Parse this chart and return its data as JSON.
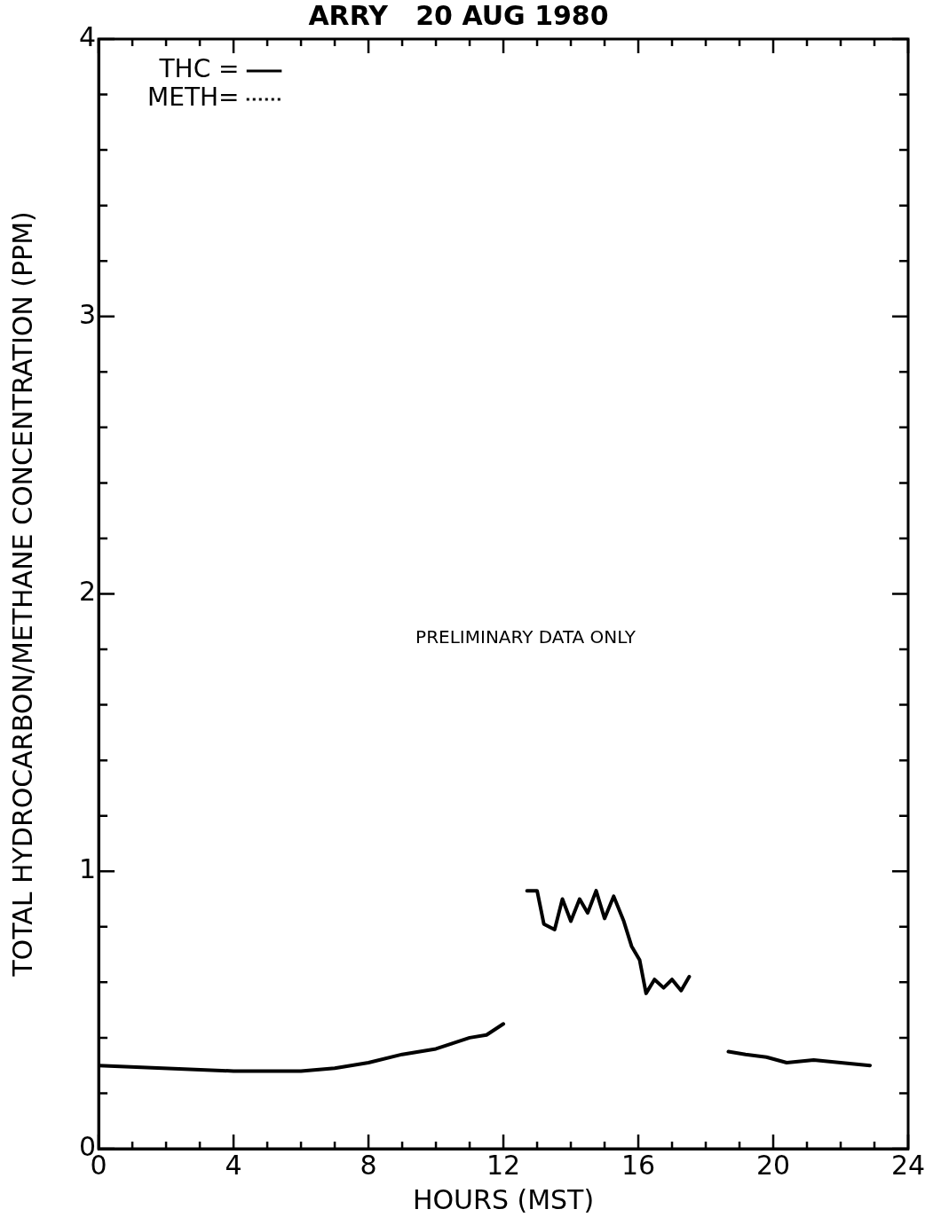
{
  "chart_data": {
    "type": "line",
    "title": "ARRY   20 AUG 1980",
    "xlabel": "HOURS (MST)",
    "ylabel": "TOTAL HYDROCARBON/METHANE CONCENTRATION (PPM)",
    "xlim": [
      0,
      24
    ],
    "xticks": [
      0,
      {
        "value": 1,
        "label": null
      },
      {
        "value": 2,
        "label": null
      },
      {
        "value": 3,
        "label": null
      },
      4,
      {
        "value": 5,
        "label": null
      },
      {
        "value": 6,
        "label": null
      },
      {
        "value": 7,
        "label": null
      },
      8,
      {
        "value": 9,
        "label": null
      },
      {
        "value": 10,
        "label": null
      },
      {
        "value": 11,
        "label": null
      },
      12,
      {
        "value": 13,
        "label": null
      },
      {
        "value": 14,
        "label": null
      },
      {
        "value": 15,
        "label": null
      },
      16,
      {
        "value": 17,
        "label": null
      },
      {
        "value": 18,
        "label": null
      },
      {
        "value": 19,
        "label": null
      },
      20,
      {
        "value": 21,
        "label": null
      },
      {
        "value": 22,
        "label": null
      },
      {
        "value": 23,
        "label": null
      },
      24
    ],
    "ylim": [
      0,
      4
    ],
    "yticks": [
      0,
      {
        "value": 0.2,
        "label": null
      },
      {
        "value": 0.4,
        "label": null
      },
      {
        "value": 0.6,
        "label": null
      },
      {
        "value": 0.8,
        "label": null
      },
      1,
      {
        "value": 1.2,
        "label": null
      },
      {
        "value": 1.4,
        "label": null
      },
      {
        "value": 1.6,
        "label": null
      },
      {
        "value": 1.8,
        "label": null
      },
      2,
      {
        "value": 2.2,
        "label": null
      },
      {
        "value": 2.4,
        "label": null
      },
      {
        "value": 2.6,
        "label": null
      },
      {
        "value": 2.8,
        "label": null
      },
      3,
      {
        "value": 3.2,
        "label": null
      },
      {
        "value": 3.4,
        "label": null
      },
      {
        "value": 3.6,
        "label": null
      },
      {
        "value": 3.8,
        "label": null
      },
      4
    ],
    "grid": false,
    "legend": "top left",
    "marker": "none",
    "annotations": [
      "PRELIMINARY DATA ONLY"
    ],
    "series": [
      {
        "name": "THC =",
        "color": "#000000",
        "line_style": "solid",
        "x": [
          0,
          4,
          6,
          7,
          8,
          9,
          10,
          10.5,
          11,
          11.5,
          12,
          12.35,
          12.7,
          13,
          13.2,
          13.52,
          13.75,
          14,
          14.26,
          14.5,
          14.75,
          15,
          15.27,
          15.57,
          15.8,
          16.04,
          16.23,
          16.48,
          16.75,
          17,
          17.27,
          17.51,
          18.1,
          18.67,
          19.18,
          19.8,
          20.4,
          21.2,
          22,
          22.87
        ],
        "values": [
          0.3,
          0.28,
          0.28,
          0.29,
          0.31,
          0.34,
          0.36,
          0.38,
          0.4,
          0.41,
          0.45,
          null,
          0.93,
          0.93,
          0.81,
          0.79,
          0.9,
          0.82,
          0.9,
          0.85,
          0.93,
          0.83,
          0.91,
          0.82,
          0.73,
          0.68,
          0.56,
          0.61,
          0.58,
          0.61,
          0.57,
          0.62,
          null,
          0.35,
          0.34,
          0.33,
          0.31,
          0.32,
          0.31,
          0.3
        ]
      },
      {
        "name": "METH=",
        "color": "#000000",
        "line_style": "dotted"
      }
    ]
  }
}
